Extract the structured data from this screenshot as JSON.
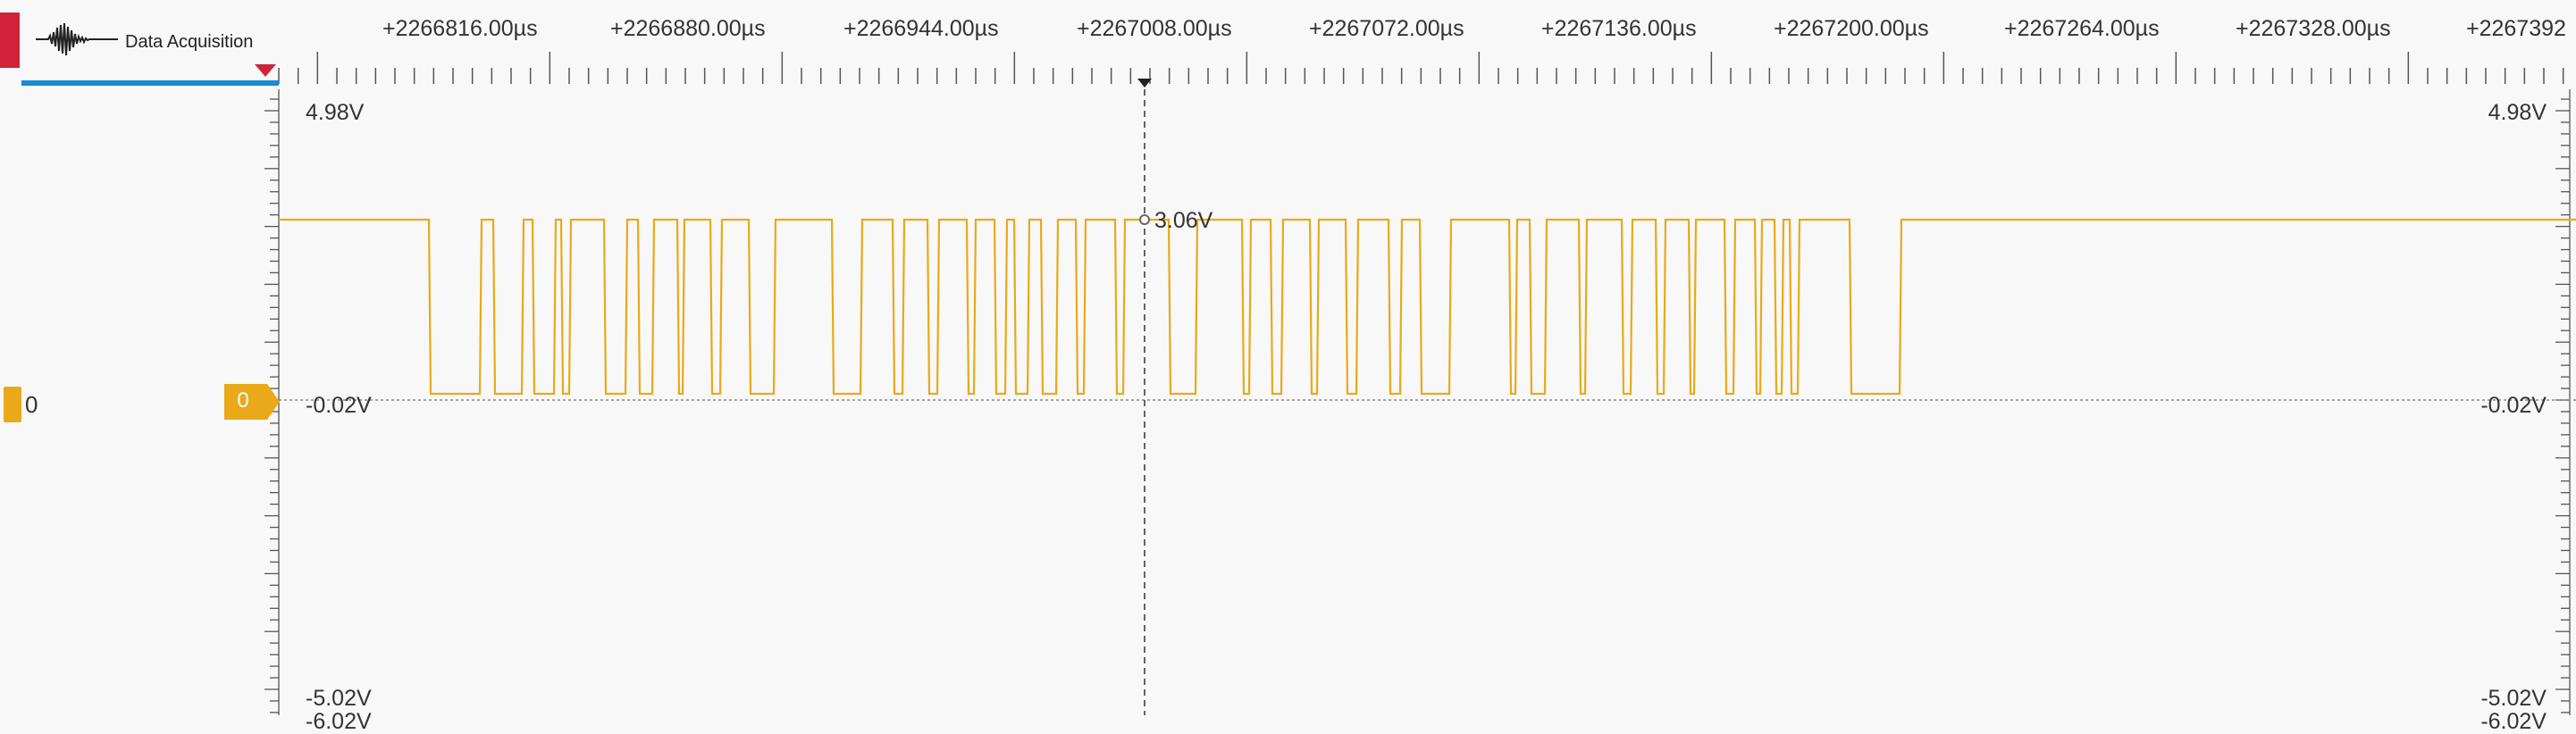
{
  "app": {
    "section_title": "Data Acquisition",
    "recording_color": "#d0223a",
    "accent": "#1a8ad4"
  },
  "time_axis": {
    "unit": "µs",
    "labels": [
      "+2266816.00µs",
      "+2266880.00µs",
      "+2266944.00µs",
      "+2267008.00µs",
      "+2267072.00µs",
      "+2267136.00µs",
      "+2267200.00µs",
      "+2267264.00µs",
      "+2267328.00µs",
      "+2267392"
    ]
  },
  "channel": {
    "name": "0",
    "trigger_label": "0",
    "color": "#e9a91a"
  },
  "volt_axis": {
    "max_left": "4.98V",
    "max_right": "4.98V",
    "zero_left": "-0.02V",
    "zero_right": "-0.02V",
    "min_left": "-5.02V",
    "min_right": "-5.02V",
    "below_cut": "-6.02V"
  },
  "cursor": {
    "readout": "3.06V"
  }
}
